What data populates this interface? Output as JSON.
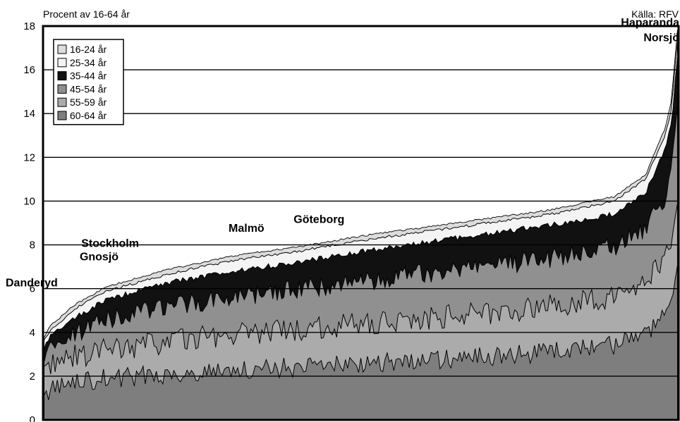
{
  "chart_data": {
    "type": "area",
    "stacked": true,
    "ylabel": "Procent av 16-64 år",
    "source": "Källa: RFV",
    "ylim": [
      0,
      18
    ],
    "yticks": [
      0,
      2,
      4,
      6,
      8,
      10,
      12,
      14,
      16,
      18
    ],
    "grid": true,
    "legend_position": "top-left",
    "series": [
      {
        "name": "16-24 år",
        "color": "#dcdcdc"
      },
      {
        "name": "25-34 år",
        "color": "#f4f4f4"
      },
      {
        "name": "35-44 år",
        "color": "#111111"
      },
      {
        "name": "45-54 år",
        "color": "#909090"
      },
      {
        "name": "55-59 år",
        "color": "#ababab"
      },
      {
        "name": "60-64 år",
        "color": "#7e7e7e"
      }
    ],
    "x_count": 289,
    "cumulative_totals_profile": {
      "x_fraction": [
        0,
        0.01,
        0.05,
        0.1,
        0.2,
        0.3,
        0.4,
        0.5,
        0.6,
        0.7,
        0.8,
        0.9,
        0.95,
        0.98,
        0.99,
        1
      ],
      "top_total": [
        3.8,
        4.3,
        5.3,
        6.1,
        6.9,
        7.5,
        7.9,
        8.4,
        8.8,
        9.2,
        9.6,
        10.2,
        11.2,
        13.3,
        14.5,
        17.8
      ],
      "without_16_24": [
        3.6,
        4.1,
        5.1,
        5.9,
        6.7,
        7.3,
        7.7,
        8.2,
        8.6,
        9.0,
        9.4,
        10.0,
        11.0,
        13.0,
        14.1,
        17.3
      ],
      "without_16_34": [
        3.3,
        3.8,
        4.7,
        5.5,
        6.3,
        6.8,
        7.2,
        7.7,
        8.1,
        8.5,
        8.9,
        9.4,
        10.4,
        12.3,
        13.4,
        16.5
      ],
      "without_16_44": [
        2.9,
        3.3,
        4.0,
        4.6,
        5.2,
        5.6,
        6.0,
        6.3,
        6.7,
        7.0,
        7.4,
        7.9,
        8.7,
        10.2,
        11.2,
        14.0
      ],
      "with_55_64": [
        2.2,
        2.5,
        2.9,
        3.2,
        3.6,
        3.9,
        4.1,
        4.4,
        4.6,
        4.9,
        5.2,
        5.6,
        6.3,
        7.5,
        8.4,
        10.4
      ],
      "only_60_64": [
        1.1,
        1.4,
        1.7,
        1.9,
        2.1,
        2.3,
        2.4,
        2.6,
        2.7,
        2.9,
        3.1,
        3.4,
        3.9,
        4.8,
        5.4,
        6.8
      ]
    },
    "annotations": [
      {
        "text": "Danderyd",
        "x_index": 0,
        "y": 6.1
      },
      {
        "text": "Gnosjö",
        "x_index": 25,
        "y": 7.3
      },
      {
        "text": "Stockholm",
        "x_index": 30,
        "y": 7.9
      },
      {
        "text": "Malmö",
        "x_index": 92,
        "y": 8.6
      },
      {
        "text": "Göteborg",
        "x_index": 125,
        "y": 9.0
      },
      {
        "text": "Norsjö",
        "x_index": 281,
        "y": 17.3
      },
      {
        "text": "Haparanda",
        "x_index": 283,
        "y": 18.0
      }
    ]
  }
}
